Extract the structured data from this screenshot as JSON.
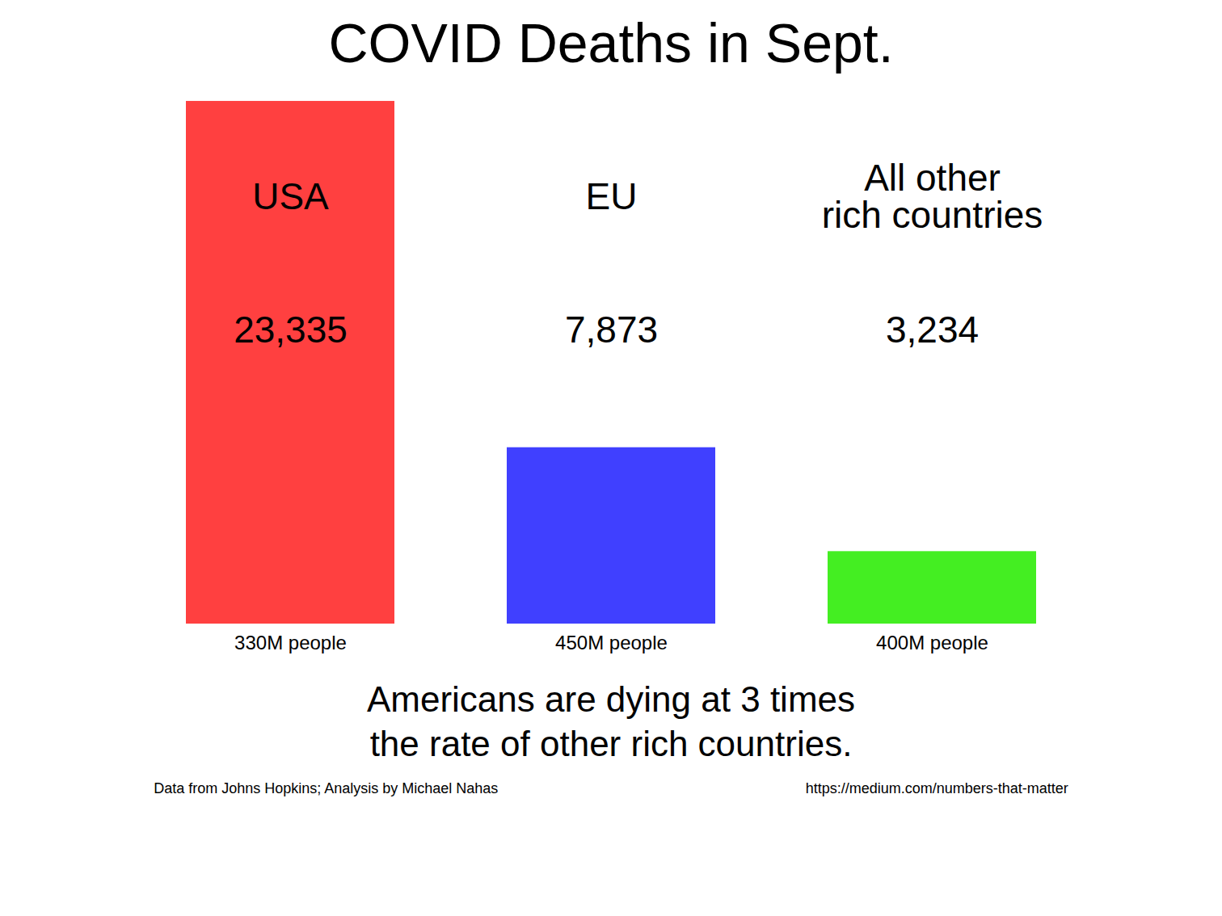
{
  "chart_data": {
    "type": "bar",
    "title": "COVID Deaths in Sept.",
    "subtitle": "Americans are dying at 3 times\nthe rate of other rich countries.",
    "categories": [
      "USA",
      "EU",
      "All other\nrich countries"
    ],
    "values": [
      23335,
      7873,
      3234
    ],
    "value_labels": [
      "23,335",
      "7,873",
      "3,234"
    ],
    "data_labels": true,
    "colors": [
      "#FF4040",
      "#4040FF",
      "#44EE22"
    ],
    "population_labels": [
      "330M people",
      "450M people",
      "400M people"
    ],
    "annotations": [
      "Data from Johns Hopkins; Analysis by Michael Nahas",
      "https://medium.com/numbers-that-matter"
    ],
    "ylim": [
      0,
      23801.7
    ],
    "tick_labels": false,
    "grid": false
  }
}
